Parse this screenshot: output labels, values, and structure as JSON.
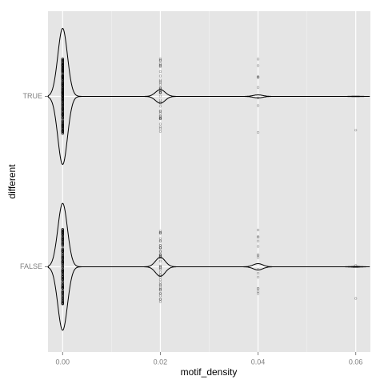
{
  "chart_data": {
    "type": "violin",
    "x_label": "motif_density",
    "y_label": "different",
    "categories": [
      "TRUE",
      "FALSE"
    ],
    "series": [
      {
        "name": "TRUE",
        "x": [
          0,
          0.02,
          0.04,
          0.06
        ],
        "counts": [
          400,
          40,
          9,
          1
        ]
      },
      {
        "name": "FALSE",
        "x": [
          0,
          0.02,
          0.04,
          0.06
        ],
        "counts": [
          300,
          45,
          15,
          2
        ]
      }
    ],
    "color": "#000000",
    "xlim": [
      -0.003,
      0.063
    ],
    "xticks": [
      {
        "value": 0,
        "label": "0.00"
      },
      {
        "value": 0.02,
        "label": "0.02"
      },
      {
        "value": 0.04,
        "label": "0.04"
      },
      {
        "value": 0.06,
        "label": "0.06"
      }
    ],
    "xminor": [
      0.01,
      0.03,
      0.05
    ],
    "grid": true
  }
}
